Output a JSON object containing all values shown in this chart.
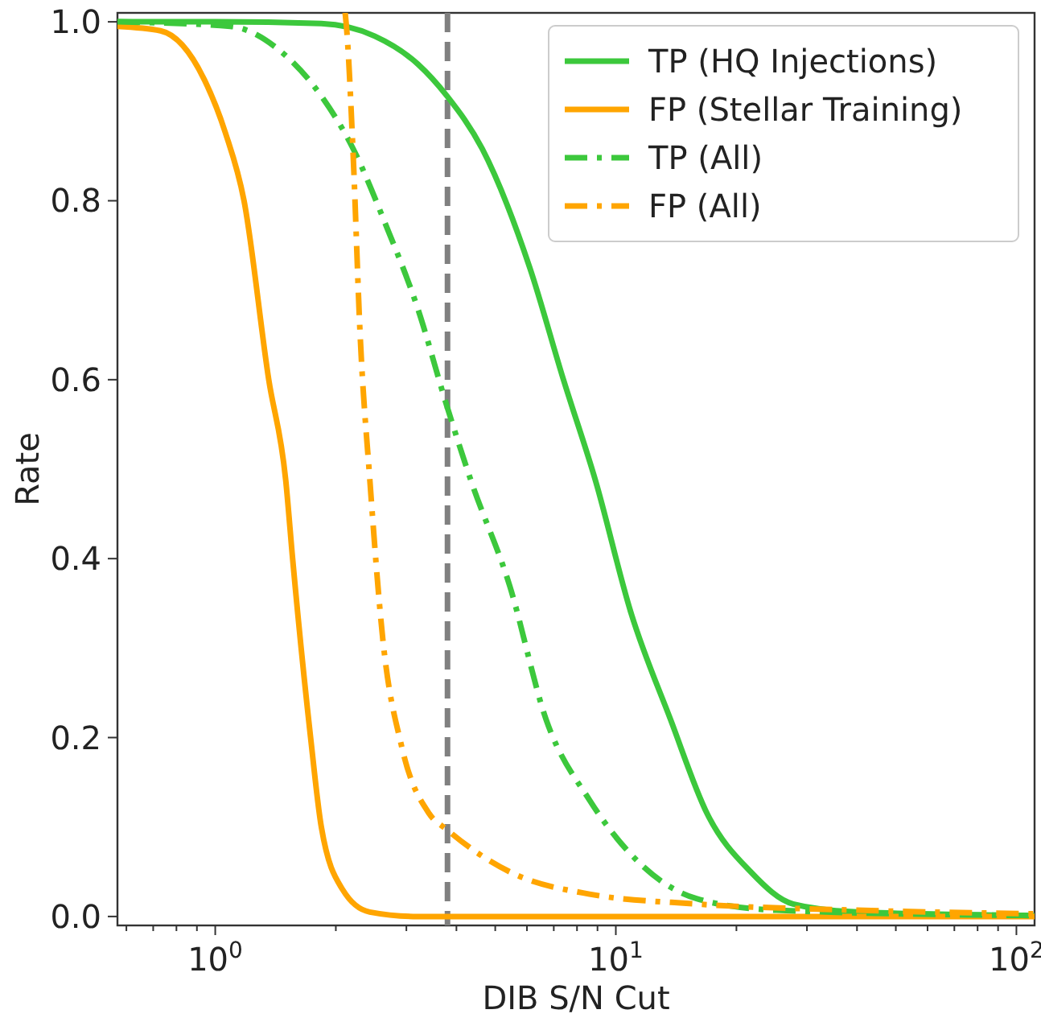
{
  "chart_data": {
    "type": "line",
    "xlabel": "DIB  S/N Cut",
    "ylabel": "Rate",
    "log": "x",
    "xlim": [
      0.57,
      111
    ],
    "ylim": [
      -0.01,
      1.01
    ],
    "xticks": [
      {
        "value": 0.6,
        "label": null
      },
      {
        "value": 0.7,
        "label": null
      },
      {
        "value": 0.8,
        "label": null
      },
      {
        "value": 0.9,
        "label": null
      },
      {
        "value": 1,
        "label": "10$^{0}$"
      },
      {
        "value": 2,
        "label": null
      },
      {
        "value": 3,
        "label": null
      },
      {
        "value": 4,
        "label": null
      },
      {
        "value": 5,
        "label": null
      },
      {
        "value": 6,
        "label": null
      },
      {
        "value": 7,
        "label": null
      },
      {
        "value": 8,
        "label": null
      },
      {
        "value": 9,
        "label": null
      },
      {
        "value": 10,
        "label": "10$^{1}$"
      },
      {
        "value": 20,
        "label": null
      },
      {
        "value": 30,
        "label": null
      },
      {
        "value": 40,
        "label": null
      },
      {
        "value": 50,
        "label": null
      },
      {
        "value": 60,
        "label": null
      },
      {
        "value": 70,
        "label": null
      },
      {
        "value": 80,
        "label": null
      },
      {
        "value": 90,
        "label": null
      },
      {
        "value": 100,
        "label": "10$^{2}$"
      }
    ],
    "yticks": [
      {
        "value": 0,
        "label": "0.0"
      },
      0.2,
      0.4,
      0.6,
      0.8,
      {
        "value": 1,
        "label": "1.0"
      }
    ],
    "grid": false,
    "legend": "top right",
    "marker": "none",
    "ref_lines": [
      {
        "axis": "x",
        "value": 3.8,
        "label": null,
        "color": "#808080",
        "line_style": "dashed"
      }
    ],
    "series": [
      {
        "name": "TP (HQ Injections)",
        "color": "#3cc83c",
        "line_style": "solid",
        "x": [
          0.57,
          1.0,
          1.84,
          2.5,
          3.2,
          3.79,
          4.64,
          6.1,
          7.4,
          8.9,
          10.9,
          13.7,
          16.9,
          21.7,
          27.7,
          40,
          111
        ],
        "values": [
          1.0,
          1.0,
          0.998,
          0.984,
          0.953,
          0.917,
          0.858,
          0.725,
          0.6,
          0.487,
          0.34,
          0.22,
          0.115,
          0.05,
          0.014,
          0.005,
          0.001
        ]
      },
      {
        "name": "FP (Stellar Training)",
        "color": "#ffa500",
        "line_style": "solid",
        "x": [
          0.57,
          0.73,
          0.94,
          1.06,
          1.18,
          1.36,
          1.5,
          1.56,
          1.73,
          1.84,
          2.08,
          2.43,
          3.2,
          111
        ],
        "values": [
          0.995,
          0.99,
          0.935,
          0.876,
          0.8,
          0.6,
          0.487,
          0.4,
          0.2,
          0.1,
          0.03,
          0.005,
          0.0,
          0.0
        ]
      },
      {
        "name": "TP (All)",
        "color": "#3cc83c",
        "line_style": "dashdot",
        "x": [
          0.57,
          1.09,
          1.43,
          1.84,
          2.21,
          2.66,
          3.2,
          3.79,
          4.35,
          5.43,
          6.7,
          8.6,
          11.7,
          15.9,
          25.2,
          111
        ],
        "values": [
          1.0,
          0.995,
          0.97,
          0.917,
          0.858,
          0.774,
          0.68,
          0.57,
          0.487,
          0.37,
          0.22,
          0.13,
          0.056,
          0.02,
          0.007,
          0.001
        ]
      },
      {
        "name": "FP (All)",
        "color": "#ffa500",
        "line_style": "dashdot",
        "x": [
          2.11,
          2.13,
          2.21,
          2.3,
          2.43,
          2.62,
          2.92,
          3.42,
          3.79,
          5.43,
          8.6,
          15.9,
          40,
          111
        ],
        "values": [
          1.01,
          0.99,
          0.85,
          0.65,
          0.49,
          0.31,
          0.19,
          0.115,
          0.097,
          0.05,
          0.025,
          0.014,
          0.007,
          0.003
        ]
      }
    ]
  }
}
